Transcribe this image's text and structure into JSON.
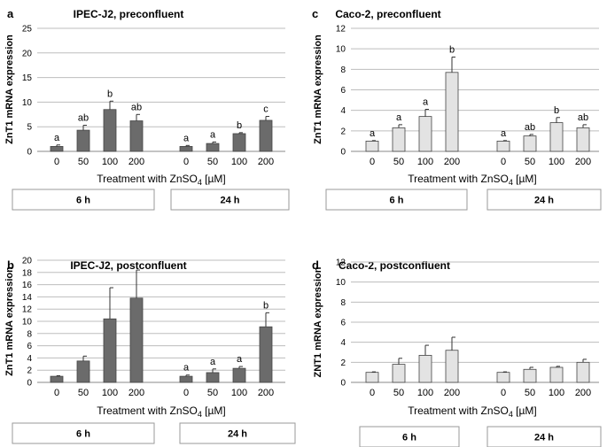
{
  "chart_data": [
    {
      "id": "a",
      "type": "bar",
      "panel_letter": "a",
      "title": "IPEC-J2, preconfluent",
      "ylabel": "ZnT1 mRNA expression",
      "xlabel": "Treatment with ZnSO",
      "xlabel_sub": "4",
      "xlabel_unit": " [µM]",
      "ylim": [
        0,
        25
      ],
      "yticks": [
        0,
        5,
        10,
        15,
        20,
        25
      ],
      "bar_color": "#6b6b6b",
      "grid": true,
      "groups": [
        {
          "label": "6 h",
          "categories": [
            "0",
            "50",
            "100",
            "200"
          ],
          "values": [
            1.0,
            4.3,
            8.5,
            6.2
          ],
          "errors": [
            0.3,
            1.0,
            1.7,
            1.3
          ],
          "letters": [
            "a",
            "ab",
            "b",
            "ab"
          ]
        },
        {
          "label": "24 h",
          "categories": [
            "0",
            "50",
            "100",
            "200"
          ],
          "values": [
            1.0,
            1.6,
            3.6,
            6.3
          ],
          "errors": [
            0.2,
            0.3,
            0.2,
            0.8
          ],
          "letters": [
            "a",
            "a",
            "b",
            "c"
          ]
        }
      ]
    },
    {
      "id": "b",
      "type": "bar",
      "panel_letter": "b",
      "title": "IPEC-J2, postconfluent",
      "ylabel": "ZnT1 mRNA expression",
      "xlabel": "Treatment with ZnSO",
      "xlabel_sub": "4",
      "xlabel_unit": " [µM]",
      "ylim": [
        0,
        20
      ],
      "yticks": [
        0,
        2,
        4,
        6,
        8,
        10,
        12,
        14,
        16,
        18,
        20
      ],
      "bar_color": "#6b6b6b",
      "grid": true,
      "groups": [
        {
          "label": "6 h",
          "categories": [
            "0",
            "50",
            "100",
            "200"
          ],
          "values": [
            1.0,
            3.5,
            10.4,
            13.8
          ],
          "errors": [
            0.1,
            0.8,
            5.1,
            4.6
          ],
          "letters": [
            "",
            "",
            "",
            ""
          ]
        },
        {
          "label": "24 h",
          "categories": [
            "0",
            "50",
            "100",
            "200"
          ],
          "values": [
            1.0,
            1.6,
            2.3,
            9.1
          ],
          "errors": [
            0.2,
            0.6,
            0.3,
            2.3
          ],
          "letters": [
            "a",
            "a",
            "a",
            "b"
          ]
        }
      ]
    },
    {
      "id": "c",
      "type": "bar",
      "panel_letter": "c",
      "title": "Caco-2, preconfluent",
      "ylabel": "ZnT1 mRNA expression",
      "xlabel": "Treatment with ZnSO",
      "xlabel_sub": "4",
      "xlabel_unit": " [µM]",
      "ylim": [
        0,
        12
      ],
      "yticks": [
        0,
        2,
        4,
        6,
        8,
        10,
        12
      ],
      "bar_color": "#e3e3e3",
      "grid": true,
      "groups": [
        {
          "label": "6 h",
          "categories": [
            "0",
            "50",
            "100",
            "200"
          ],
          "values": [
            1.0,
            2.3,
            3.4,
            7.7
          ],
          "errors": [
            0.05,
            0.3,
            0.7,
            1.5
          ],
          "letters": [
            "a",
            "a",
            "a",
            "b"
          ]
        },
        {
          "label": "24 h",
          "categories": [
            "0",
            "50",
            "100",
            "200"
          ],
          "values": [
            1.0,
            1.5,
            2.8,
            2.3
          ],
          "errors": [
            0.05,
            0.15,
            0.5,
            0.3
          ],
          "letters": [
            "a",
            "ab",
            "b",
            "ab"
          ]
        }
      ]
    },
    {
      "id": "d",
      "type": "bar",
      "panel_letter": "d",
      "title": "Caco-2, postconfluent",
      "ylabel": "ZNT1 mRNA expression",
      "xlabel": "Treatment with ZnSO",
      "xlabel_sub": "4",
      "xlabel_unit": " [µM]",
      "ylim": [
        0,
        12
      ],
      "yticks": [
        0,
        2,
        4,
        6,
        8,
        10,
        12
      ],
      "bar_color": "#e3e3e3",
      "grid": true,
      "groups": [
        {
          "label": "6 h",
          "categories": [
            "0",
            "50",
            "100",
            "200"
          ],
          "values": [
            1.0,
            1.8,
            2.7,
            3.2
          ],
          "errors": [
            0.05,
            0.6,
            1.0,
            1.3
          ],
          "letters": [
            "",
            "",
            "",
            ""
          ]
        },
        {
          "label": "24 h",
          "categories": [
            "0",
            "50",
            "100",
            "200"
          ],
          "values": [
            1.0,
            1.3,
            1.5,
            2.0
          ],
          "errors": [
            0.05,
            0.2,
            0.1,
            0.3
          ],
          "letters": [
            "",
            "",
            "",
            ""
          ]
        }
      ]
    }
  ]
}
